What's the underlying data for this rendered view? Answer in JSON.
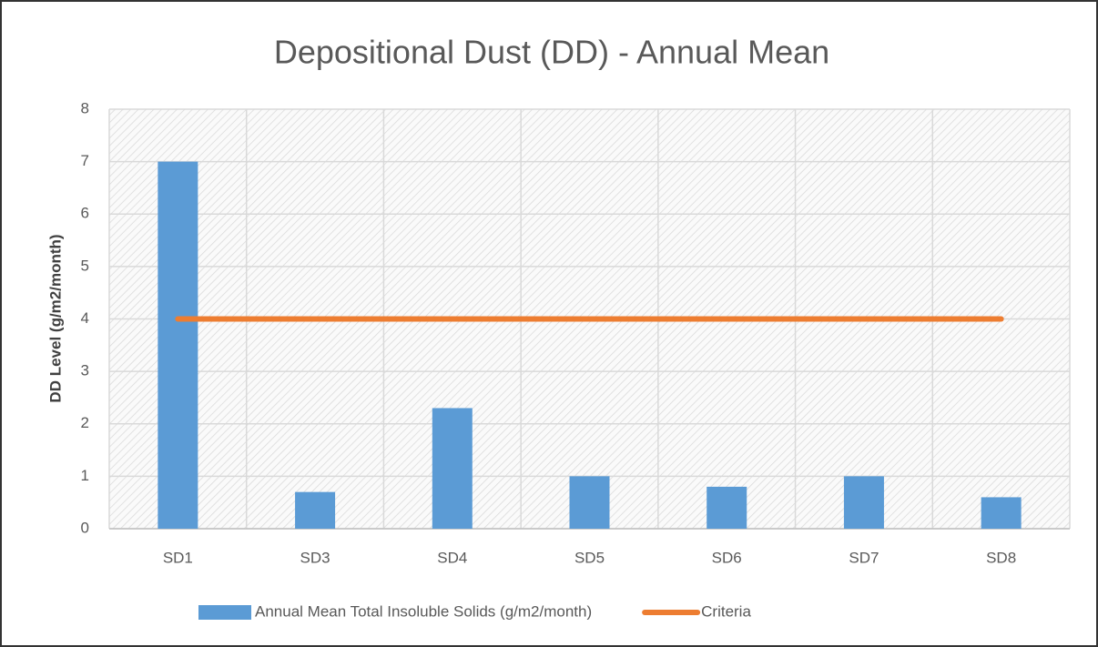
{
  "chart_data": {
    "type": "bar",
    "title": "Depositional Dust (DD) - Annual Mean",
    "y_label": "DD Level (g/m2/month)",
    "categories": [
      "SD1",
      "SD3",
      "SD4",
      "SD5",
      "SD6",
      "SD7",
      "SD8"
    ],
    "series": [
      {
        "name": "Annual Mean Total Insoluble Solids (g/m2/month)",
        "type": "bar",
        "color": "#5b9bd5",
        "values": [
          7.0,
          0.7,
          2.3,
          1.0,
          0.8,
          1.0,
          0.6
        ]
      },
      {
        "name": "Criteria",
        "type": "line",
        "color": "#ed7d31",
        "values": [
          4,
          4,
          4,
          4,
          4,
          4,
          4
        ]
      }
    ],
    "ylim": [
      0,
      8
    ],
    "yticks": [
      0,
      1,
      2,
      3,
      4,
      5,
      6,
      7,
      8
    ],
    "grid": true,
    "legend": "bottom"
  }
}
